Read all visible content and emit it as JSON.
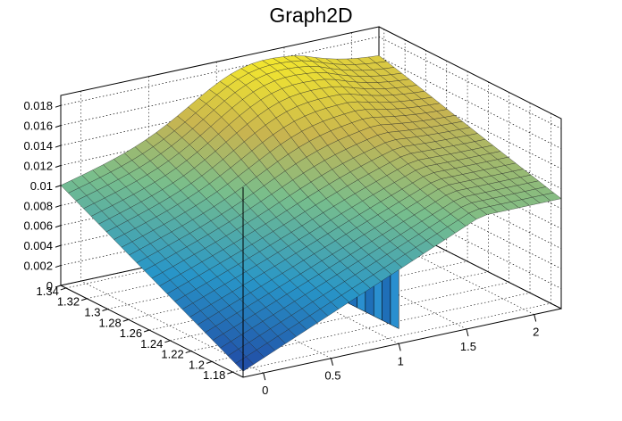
{
  "window": {
    "title": "Graph2D"
  },
  "chart_data": {
    "type": "surface",
    "title": "Graph2D",
    "xlabel": "",
    "ylabel": "",
    "zlabel": "",
    "x_range": [
      -0.15,
      2.2
    ],
    "y_range": [
      1.17,
      1.345
    ],
    "z_range": [
      0,
      0.019
    ],
    "x_ticks": [
      0,
      0.5,
      1,
      1.5,
      2
    ],
    "x_tick_labels": [
      "0",
      "0.5",
      "1",
      "1.5",
      "2"
    ],
    "y_ticks": [
      1.18,
      1.2,
      1.22,
      1.24,
      1.26,
      1.28,
      1.3,
      1.32,
      1.34
    ],
    "y_tick_labels": [
      "1.18",
      "1.2",
      "1.22",
      "1.24",
      "1.26",
      "1.28",
      "1.3",
      "1.32",
      "1.34"
    ],
    "z_ticks": [
      0,
      0.002,
      0.004,
      0.006,
      0.008,
      0.01,
      0.012,
      0.014,
      0.016,
      0.018
    ],
    "z_tick_labels": [
      "0",
      "0.002",
      "0.004",
      "0.006",
      "0.008",
      "0.01",
      "0.012",
      "0.014",
      "0.016",
      "0.018"
    ],
    "grid": true,
    "colormap": "viridis-like (blue → teal → green → yellow)",
    "surface_corners": [
      {
        "x": -0.15,
        "y": 1.345,
        "z": 0.01
      },
      {
        "x": -0.15,
        "y": 1.17,
        "z": 0.0005
      },
      {
        "x": 0.4,
        "y": 1.17,
        "z": 0.0015
      },
      {
        "x": 2.2,
        "y": 1.17,
        "z": 0.01
      },
      {
        "x": 2.2,
        "y": 1.345,
        "z": 0.0155
      }
    ],
    "features": [
      {
        "description": "ridge",
        "x": 1.2,
        "y": 1.33,
        "z": 0.0185
      },
      {
        "description": "vertical drop edge",
        "x": 1.0,
        "z_top": 0.012,
        "z_bottom": 0.002
      }
    ]
  }
}
